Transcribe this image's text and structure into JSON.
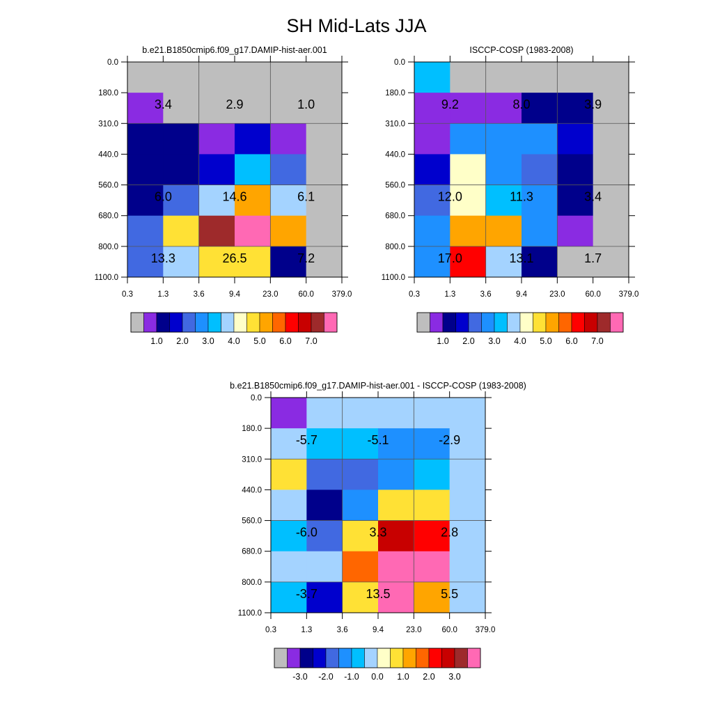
{
  "title": "SH Mid-Lats JJA",
  "chart_data": [
    {
      "type": "heatmap",
      "title": "b.e21.B1850cmip6.f09_g17.DAMIP-hist-aer.001",
      "x_ticks": [
        "0.3",
        "1.3",
        "3.6",
        "9.4",
        "23.0",
        "60.0",
        "379.0"
      ],
      "y_ticks": [
        "0.0",
        "180.0",
        "310.0",
        "440.0",
        "560.0",
        "680.0",
        "800.0",
        "1100.0"
      ],
      "cell_colors": [
        [
          "#BEBEBE",
          "#BEBEBE",
          "#BEBEBE",
          "#BEBEBE",
          "#BEBEBE",
          "#BEBEBE"
        ],
        [
          "#8A2BE2",
          "#BEBEBE",
          "#BEBEBE",
          "#BEBEBE",
          "#BEBEBE",
          "#BEBEBE"
        ],
        [
          "#00008B",
          "#00008B",
          "#8A2BE2",
          "#0000CD",
          "#8A2BE2",
          "#BEBEBE"
        ],
        [
          "#00008B",
          "#00008B",
          "#0000CD",
          "#00BFFF",
          "#4169E1",
          "#BEBEBE"
        ],
        [
          "#00008B",
          "#4169E1",
          "#A4D3FF",
          "#FFA500",
          "#A4D3FF",
          "#BEBEBE"
        ],
        [
          "#4169E1",
          "#FFE135",
          "#9E2A2B",
          "#FF69B4",
          "#FFA500",
          "#BEBEBE"
        ],
        [
          "#4169E1",
          "#A4D3FF",
          "#FFE135",
          "#FFE135",
          "#00008B",
          "#BEBEBE"
        ]
      ],
      "annotations": [
        {
          "row": 1,
          "col": 1,
          "text": "3.4"
        },
        {
          "row": 1,
          "col": 3,
          "text": "2.9"
        },
        {
          "row": 1,
          "col": 5,
          "text": "1.0"
        },
        {
          "row": 4,
          "col": 1,
          "text": "6.0"
        },
        {
          "row": 4,
          "col": 3,
          "text": "14.6"
        },
        {
          "row": 4,
          "col": 5,
          "text": "6.1"
        },
        {
          "row": 6,
          "col": 1,
          "text": "13.3"
        },
        {
          "row": 6,
          "col": 3,
          "text": "26.5"
        },
        {
          "row": 6,
          "col": 5,
          "text": "7.2"
        }
      ],
      "colorbar": {
        "colors": [
          "#BEBEBE",
          "#8A2BE2",
          "#00008B",
          "#0000CD",
          "#4169E1",
          "#1E90FF",
          "#00BFFF",
          "#A4D3FF",
          "#FFFFC8",
          "#FFE135",
          "#FFA500",
          "#FF6600",
          "#FF0000",
          "#C80000",
          "#9E2A2B",
          "#FF69B4"
        ],
        "labels": [
          {
            "boundary": 2,
            "text": "1.0"
          },
          {
            "boundary": 4,
            "text": "2.0"
          },
          {
            "boundary": 6,
            "text": "3.0"
          },
          {
            "boundary": 8,
            "text": "4.0"
          },
          {
            "boundary": 10,
            "text": "5.0"
          },
          {
            "boundary": 12,
            "text": "6.0"
          },
          {
            "boundary": 14,
            "text": "7.0"
          }
        ]
      }
    },
    {
      "type": "heatmap",
      "title": "ISCCP-COSP (1983-2008)",
      "x_ticks": [
        "0.3",
        "1.3",
        "3.6",
        "9.4",
        "23.0",
        "60.0",
        "379.0"
      ],
      "y_ticks": [
        "0.0",
        "180.0",
        "310.0",
        "440.0",
        "560.0",
        "680.0",
        "800.0",
        "1100.0"
      ],
      "cell_colors": [
        [
          "#00BFFF",
          "#BEBEBE",
          "#BEBEBE",
          "#BEBEBE",
          "#BEBEBE",
          "#BEBEBE"
        ],
        [
          "#8A2BE2",
          "#8A2BE2",
          "#8A2BE2",
          "#00008B",
          "#00008B",
          "#BEBEBE"
        ],
        [
          "#8A2BE2",
          "#1E90FF",
          "#1E90FF",
          "#1E90FF",
          "#0000CD",
          "#BEBEBE"
        ],
        [
          "#0000CD",
          "#FFFFC8",
          "#1E90FF",
          "#4169E1",
          "#00008B",
          "#BEBEBE"
        ],
        [
          "#4169E1",
          "#FFFFC8",
          "#00BFFF",
          "#1E90FF",
          "#00008B",
          "#BEBEBE"
        ],
        [
          "#1E90FF",
          "#FFA500",
          "#FFA500",
          "#1E90FF",
          "#8A2BE2",
          "#BEBEBE"
        ],
        [
          "#1E90FF",
          "#FF0000",
          "#A4D3FF",
          "#00008B",
          "#BEBEBE",
          "#BEBEBE"
        ]
      ],
      "annotations": [
        {
          "row": 1,
          "col": 1,
          "text": "9.2"
        },
        {
          "row": 1,
          "col": 3,
          "text": "8.0"
        },
        {
          "row": 1,
          "col": 5,
          "text": "3.9"
        },
        {
          "row": 4,
          "col": 1,
          "text": "12.0"
        },
        {
          "row": 4,
          "col": 3,
          "text": "11.3"
        },
        {
          "row": 4,
          "col": 5,
          "text": "3.4"
        },
        {
          "row": 6,
          "col": 1,
          "text": "17.0"
        },
        {
          "row": 6,
          "col": 3,
          "text": "13.1"
        },
        {
          "row": 6,
          "col": 5,
          "text": "1.7"
        }
      ],
      "colorbar": {
        "colors": [
          "#BEBEBE",
          "#8A2BE2",
          "#00008B",
          "#0000CD",
          "#4169E1",
          "#1E90FF",
          "#00BFFF",
          "#A4D3FF",
          "#FFFFC8",
          "#FFE135",
          "#FFA500",
          "#FF6600",
          "#FF0000",
          "#C80000",
          "#9E2A2B",
          "#FF69B4"
        ],
        "labels": [
          {
            "boundary": 2,
            "text": "1.0"
          },
          {
            "boundary": 4,
            "text": "2.0"
          },
          {
            "boundary": 6,
            "text": "3.0"
          },
          {
            "boundary": 8,
            "text": "4.0"
          },
          {
            "boundary": 10,
            "text": "5.0"
          },
          {
            "boundary": 12,
            "text": "6.0"
          },
          {
            "boundary": 14,
            "text": "7.0"
          }
        ]
      }
    },
    {
      "type": "heatmap",
      "title": "b.e21.B1850cmip6.f09_g17.DAMIP-hist-aer.001 - ISCCP-COSP (1983-2008)",
      "x_ticks": [
        "0.3",
        "1.3",
        "3.6",
        "9.4",
        "23.0",
        "60.0",
        "379.0"
      ],
      "y_ticks": [
        "0.0",
        "180.0",
        "310.0",
        "440.0",
        "560.0",
        "680.0",
        "800.0",
        "1100.0"
      ],
      "cell_colors": [
        [
          "#8A2BE2",
          "#A4D3FF",
          "#A4D3FF",
          "#A4D3FF",
          "#A4D3FF",
          "#A4D3FF"
        ],
        [
          "#A4D3FF",
          "#00BFFF",
          "#00BFFF",
          "#1E90FF",
          "#1E90FF",
          "#A4D3FF"
        ],
        [
          "#FFE135",
          "#4169E1",
          "#4169E1",
          "#1E90FF",
          "#00BFFF",
          "#A4D3FF"
        ],
        [
          "#A4D3FF",
          "#00008B",
          "#1E90FF",
          "#FFE135",
          "#FFE135",
          "#A4D3FF"
        ],
        [
          "#00BFFF",
          "#4169E1",
          "#FFE135",
          "#C80000",
          "#FF0000",
          "#A4D3FF"
        ],
        [
          "#A4D3FF",
          "#A4D3FF",
          "#FF6600",
          "#FF69B4",
          "#FF69B4",
          "#A4D3FF"
        ],
        [
          "#00BFFF",
          "#0000CD",
          "#FFE135",
          "#FF69B4",
          "#FFA500",
          "#A4D3FF"
        ]
      ],
      "annotations": [
        {
          "row": 1,
          "col": 1,
          "text": "-5.7"
        },
        {
          "row": 1,
          "col": 3,
          "text": "-5.1"
        },
        {
          "row": 1,
          "col": 5,
          "text": "-2.9"
        },
        {
          "row": 4,
          "col": 1,
          "text": "-6.0"
        },
        {
          "row": 4,
          "col": 3,
          "text": "3.3"
        },
        {
          "row": 4,
          "col": 5,
          "text": "2.8"
        },
        {
          "row": 6,
          "col": 1,
          "text": "-3.7"
        },
        {
          "row": 6,
          "col": 3,
          "text": "13.5"
        },
        {
          "row": 6,
          "col": 5,
          "text": "5.5"
        }
      ],
      "colorbar": {
        "colors": [
          "#BEBEBE",
          "#8A2BE2",
          "#00008B",
          "#0000CD",
          "#4169E1",
          "#1E90FF",
          "#00BFFF",
          "#A4D3FF",
          "#FFFFC8",
          "#FFE135",
          "#FFA500",
          "#FF6600",
          "#FF0000",
          "#C80000",
          "#9E2A2B",
          "#FF69B4"
        ],
        "labels": [
          {
            "boundary": 2,
            "text": "-3.0"
          },
          {
            "boundary": 4,
            "text": "-2.0"
          },
          {
            "boundary": 6,
            "text": "-1.0"
          },
          {
            "boundary": 8,
            "text": "0.0"
          },
          {
            "boundary": 10,
            "text": "1.0"
          },
          {
            "boundary": 12,
            "text": "2.0"
          },
          {
            "boundary": 14,
            "text": "3.0"
          }
        ]
      }
    }
  ]
}
